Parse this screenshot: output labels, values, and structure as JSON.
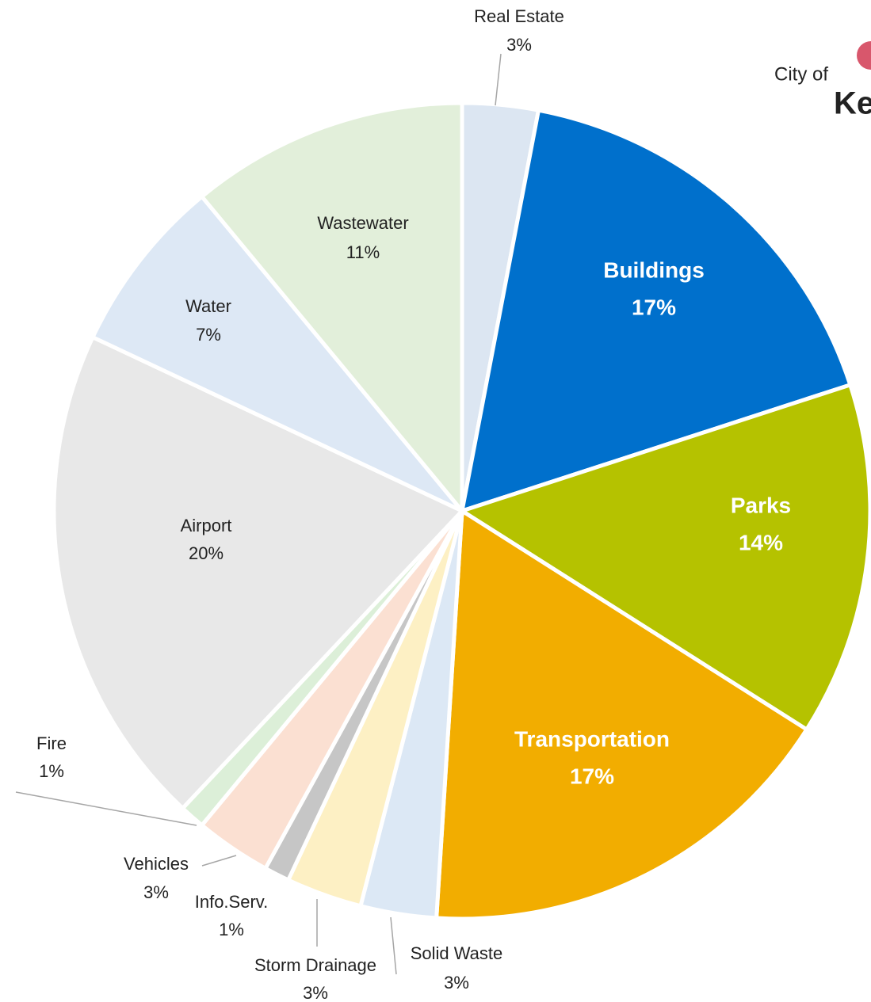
{
  "chart_data": {
    "type": "pie",
    "categories": [
      "Real Estate",
      "Buildings",
      "Parks",
      "Transportation",
      "Solid Waste",
      "Storm Drainage",
      "Info.Serv.",
      "Vehicles",
      "Fire",
      "Airport",
      "Water",
      "Wastewater"
    ],
    "values": [
      3,
      17,
      14,
      17,
      3,
      3,
      1,
      3,
      1,
      20,
      7,
      11
    ],
    "value_labels": [
      "3%",
      "17%",
      "14%",
      "17%",
      "3%",
      "3%",
      "1%",
      "3%",
      "1%",
      "20%",
      "7%",
      "11%"
    ],
    "colors": [
      "#dce6f2",
      "#0070cc",
      "#b5c200",
      "#f2ad00",
      "#dce8f5",
      "#fdf0c4",
      "#c6c6c6",
      "#fbe0d2",
      "#dcefd8",
      "#e8e8e8",
      "#dde8f5",
      "#e2efda"
    ],
    "logo": {
      "line1": "City of",
      "line2": "Kelo"
    }
  }
}
